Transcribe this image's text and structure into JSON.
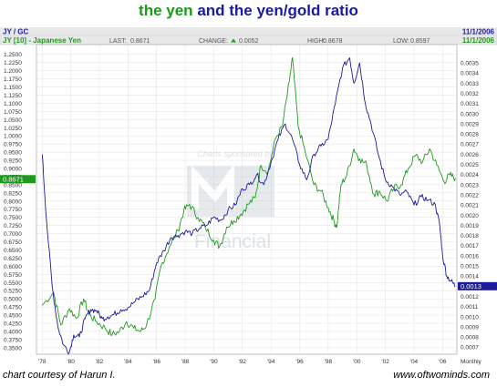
{
  "title": {
    "part_green": "the yen",
    "part_blue": "and the yen/gold ratio"
  },
  "header": {
    "symbol": "JY / GC",
    "date_top": "11/1/2006",
    "series_name": "JY [10] - Japanese Yen",
    "last_label": "LAST:",
    "last_value": "0.8671",
    "change_label": "CHANGE:",
    "change_value": "0.0052",
    "high_label": "HIGH:",
    "high_value": "0.8678",
    "low_label": "LOW:",
    "low_value": "0.8597",
    "date_right": "11/1/2006"
  },
  "watermark": {
    "line1": "Charts sponsored by",
    "line2": "Financial"
  },
  "footer": {
    "credit": "chart courtesy of Harun I.",
    "site": "www.oftwominds.com"
  },
  "colors": {
    "yen": "#1f9a1f",
    "ratio": "#1c1c9a",
    "header_bg": "#e8e8e8",
    "grid": "#d8d8d8",
    "last_tag_left": "#1f9a1f",
    "last_tag_right": "#1c1c9a"
  },
  "chart_data": {
    "type": "line",
    "x_ticks": [
      "'78",
      "'80",
      "'82",
      "'84",
      "'86",
      "'88",
      "'90",
      "'92",
      "'94",
      "'96",
      "'98",
      "'00",
      "'02",
      "'04",
      "'06"
    ],
    "x_axis_label_right": "Monthly",
    "xlim": [
      1977.6,
      2007.0
    ],
    "left_axis": {
      "ylim": [
        0.33,
        1.28
      ],
      "ticks": [
        "0.3500",
        "0.3750",
        "0.4000",
        "0.4250",
        "0.4500",
        "0.4750",
        "0.5000",
        "0.5250",
        "0.5500",
        "0.5750",
        "0.6000",
        "0.6250",
        "0.6500",
        "0.6750",
        "0.7000",
        "0.7250",
        "0.7500",
        "0.7750",
        "0.8000",
        "0.8250",
        "0.8500",
        "0.8750",
        "0.9000",
        "0.9250",
        "0.9500",
        "0.9750",
        "1.0000",
        "1.0250",
        "1.0500",
        "1.0750",
        "1.1000",
        "1.1250",
        "1.1500",
        "1.1750",
        "1.2000",
        "1.2250",
        "1.2500"
      ],
      "last_tag": "0.8671"
    },
    "right_axis": {
      "ylim": [
        0.00063,
        0.00368
      ],
      "ticks": [
        "0.0007",
        "0.0008",
        "0.0009",
        "0.0010",
        "0.0011",
        "0.0012",
        "0.0013",
        "0.0014",
        "0.0015",
        "0.0016",
        "0.0017",
        "0.0018",
        "0.0019",
        "0.0020",
        "0.0021",
        "0.0022",
        "0.0023",
        "0.0024",
        "0.0025",
        "0.0026",
        "0.0027",
        "0.0028",
        "0.0029",
        "0.0030",
        "0.0031",
        "0.0032",
        "0.0033",
        "0.0034",
        "0.0035"
      ],
      "last_tag": "0.0013"
    },
    "series": [
      {
        "name": "JY [10] - Japanese Yen",
        "axis": "left",
        "x": [
          1978.0,
          1978.8,
          1979.3,
          1979.9,
          1980.4,
          1980.9,
          1981.3,
          1981.8,
          1982.4,
          1982.9,
          1983.4,
          1983.9,
          1984.4,
          1984.9,
          1985.3,
          1985.9,
          1986.3,
          1986.9,
          1987.5,
          1987.9,
          1988.3,
          1988.9,
          1989.4,
          1990.0,
          1990.4,
          1990.9,
          1991.4,
          1991.9,
          1992.4,
          1992.9,
          1993.3,
          1993.8,
          1994.3,
          1994.8,
          1995.3,
          1995.5,
          1995.9,
          1996.4,
          1997.0,
          1997.5,
          1998.0,
          1998.4,
          1998.6,
          1998.9,
          1999.3,
          1999.8,
          2000.2,
          2000.7,
          2001.2,
          2001.6,
          2002.1,
          2002.6,
          2003.1,
          2003.6,
          2004.1,
          2004.6,
          2005.1,
          2005.6,
          2006.1,
          2006.5,
          2006.9
        ],
        "y": [
          0.48,
          0.52,
          0.42,
          0.47,
          0.44,
          0.5,
          0.45,
          0.43,
          0.41,
          0.39,
          0.4,
          0.43,
          0.41,
          0.4,
          0.42,
          0.5,
          0.6,
          0.66,
          0.71,
          0.77,
          0.79,
          0.75,
          0.72,
          0.68,
          0.66,
          0.72,
          0.74,
          0.76,
          0.79,
          0.81,
          0.91,
          0.89,
          0.99,
          1.03,
          1.17,
          1.24,
          1.03,
          0.95,
          0.85,
          0.83,
          0.78,
          0.74,
          0.72,
          0.85,
          0.88,
          0.96,
          0.93,
          0.91,
          0.82,
          0.83,
          0.8,
          0.84,
          0.85,
          0.9,
          0.94,
          0.92,
          0.96,
          0.91,
          0.86,
          0.88,
          0.87
        ]
      },
      {
        "name": "JY/GC ratio",
        "axis": "right",
        "x": [
          1978.0,
          1978.3,
          1978.7,
          1979.1,
          1979.5,
          1979.9,
          1980.2,
          1980.6,
          1981.0,
          1981.4,
          1981.8,
          1982.2,
          1982.6,
          1983.0,
          1983.5,
          1984.0,
          1984.5,
          1985.0,
          1985.5,
          1986.0,
          1986.5,
          1987.0,
          1987.5,
          1988.0,
          1988.5,
          1989.0,
          1989.5,
          1990.0,
          1990.5,
          1991.0,
          1991.5,
          1992.0,
          1992.5,
          1993.0,
          1993.5,
          1994.0,
          1994.5,
          1995.0,
          1995.5,
          1996.0,
          1996.5,
          1997.0,
          1997.5,
          1998.0,
          1998.5,
          1999.0,
          1999.5,
          1999.8,
          2000.2,
          2000.6,
          2001.0,
          2001.5,
          2002.0,
          2002.5,
          2003.0,
          2003.5,
          2004.0,
          2004.5,
          2005.0,
          2005.5,
          2005.8,
          2006.0,
          2006.3,
          2006.6,
          2006.9
        ],
        "y": [
          0.0026,
          0.00195,
          0.0013,
          0.0009,
          0.00072,
          0.00065,
          0.00082,
          0.0008,
          0.00098,
          0.00107,
          0.00106,
          0.00098,
          0.001,
          0.00102,
          0.00107,
          0.00109,
          0.00115,
          0.0012,
          0.00126,
          0.00153,
          0.00165,
          0.00178,
          0.0018,
          0.00184,
          0.00182,
          0.00187,
          0.0019,
          0.00198,
          0.00195,
          0.00205,
          0.0021,
          0.00226,
          0.0023,
          0.0024,
          0.0023,
          0.00252,
          0.00275,
          0.0029,
          0.00275,
          0.0025,
          0.00235,
          0.0026,
          0.00268,
          0.00275,
          0.0031,
          0.00345,
          0.00355,
          0.0033,
          0.0035,
          0.0031,
          0.0029,
          0.0026,
          0.00235,
          0.00228,
          0.0022,
          0.00223,
          0.0021,
          0.00218,
          0.00215,
          0.0021,
          0.0019,
          0.0016,
          0.0014,
          0.00135,
          0.0013
        ]
      }
    ]
  }
}
